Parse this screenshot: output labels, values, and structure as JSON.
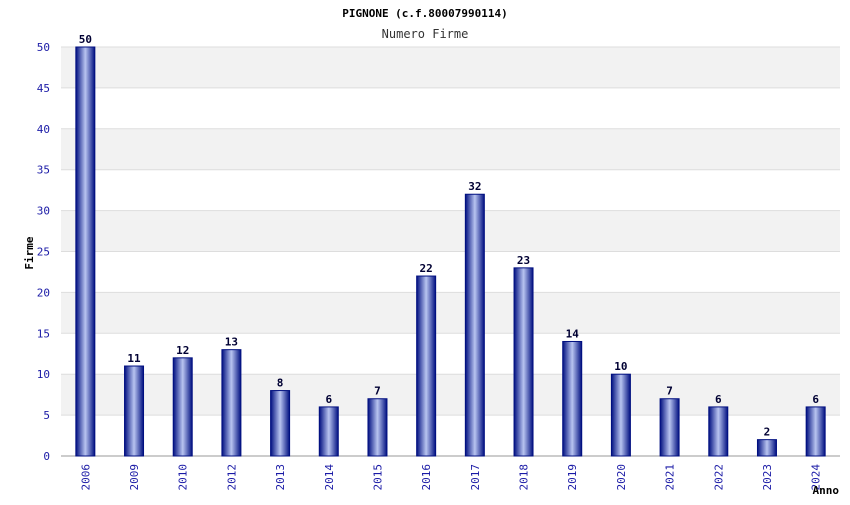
{
  "chart_data": {
    "type": "bar",
    "title": "PIGNONE (c.f.80007990114)",
    "subtitle": "Numero Firme",
    "xlabel": "Anno",
    "ylabel": "Firme",
    "categories": [
      "2006",
      "2009",
      "2010",
      "2012",
      "2013",
      "2014",
      "2015",
      "2016",
      "2017",
      "2018",
      "2019",
      "2020",
      "2021",
      "2022",
      "2023",
      "2024"
    ],
    "values": [
      50,
      11,
      12,
      13,
      8,
      6,
      7,
      22,
      32,
      23,
      14,
      10,
      7,
      6,
      2,
      6
    ],
    "ylim": [
      0,
      50
    ],
    "yticks": [
      0,
      5,
      10,
      15,
      20,
      25,
      30,
      35,
      40,
      45,
      50
    ],
    "grid": true,
    "legend": "none",
    "colors": {
      "bar_dark": "#000f80",
      "bar_light": "#b8c4f0",
      "band": "#f2f2f2",
      "gridline": "#dddddd",
      "tick_text": "#1a1aa6"
    }
  }
}
